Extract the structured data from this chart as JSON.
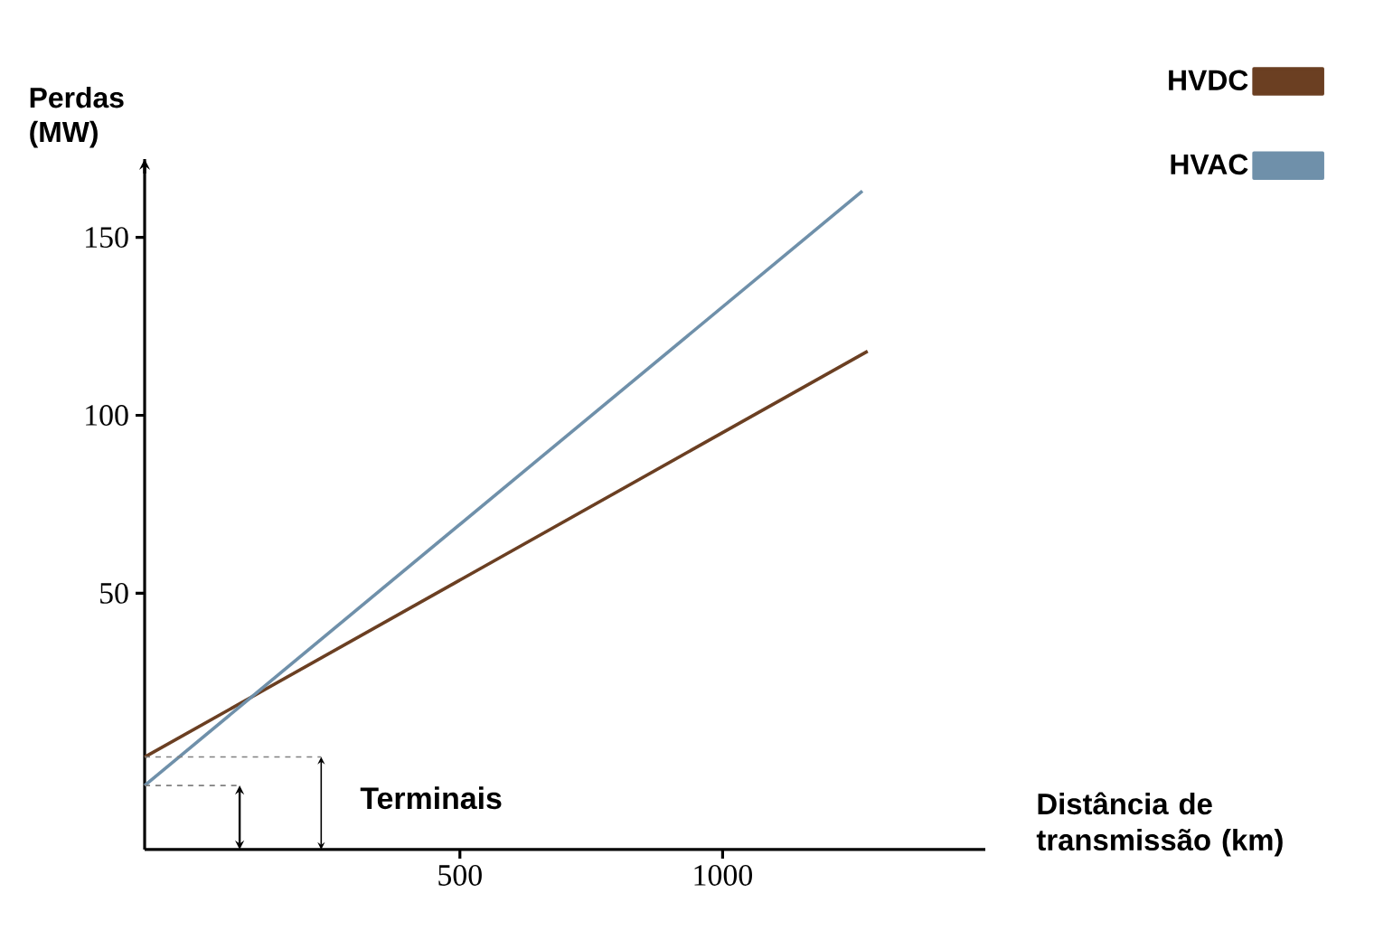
{
  "chart_data": {
    "type": "line",
    "xlabel": "Distância de transmissão (km)",
    "ylabel": "Perdas (MW)",
    "xlim": [
      -100,
      1500
    ],
    "ylim": [
      -22,
      172
    ],
    "xticks": [
      500,
      1000
    ],
    "yticks": [
      50,
      100,
      150
    ],
    "series": [
      {
        "name": "HVDC",
        "color": "#6b3f22",
        "x": [
          -100,
          1276
        ],
        "values": [
          4,
          118
        ]
      },
      {
        "name": "HVAC",
        "color": "#6f90aa",
        "x": [
          -100,
          1266
        ],
        "values": [
          -4,
          163
        ]
      }
    ],
    "annotations": [
      "Terminais"
    ],
    "legend": "top right",
    "line_style": "solid"
  }
}
